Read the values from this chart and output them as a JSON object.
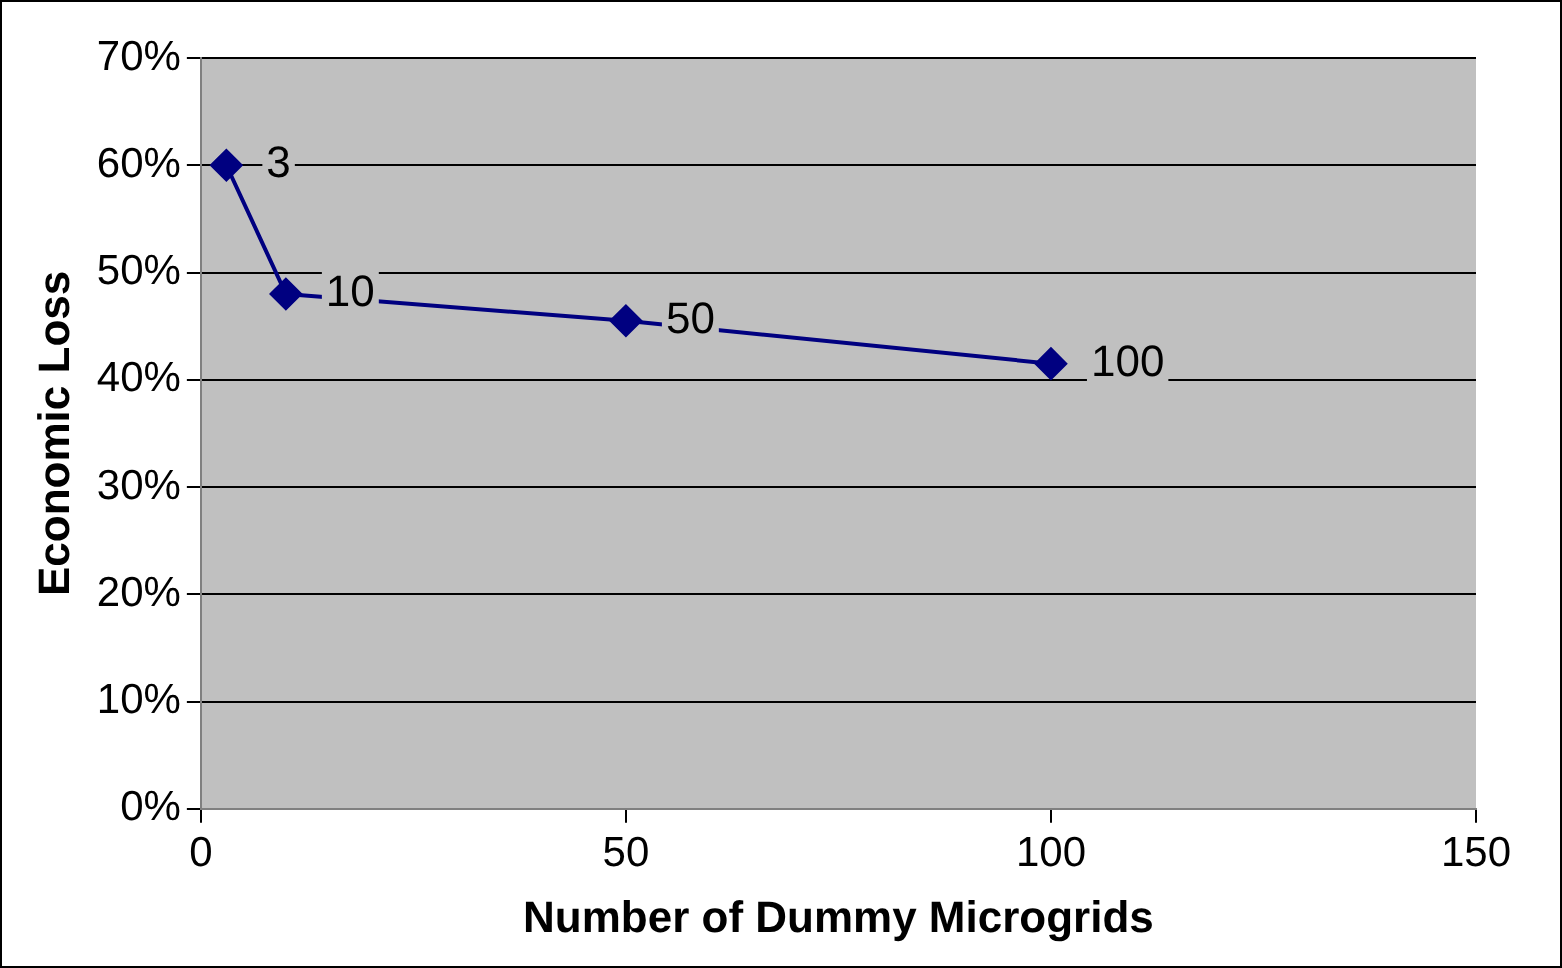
{
  "chart_data": {
    "type": "line",
    "xlabel": "Number of Dummy Microgrids",
    "ylabel": "Economic Loss",
    "x": [
      3,
      10,
      50,
      100
    ],
    "series": [
      {
        "color": "#000080",
        "values": [
          60,
          48,
          45.5,
          41.5
        ]
      }
    ],
    "annotations": [
      {
        "text": "3",
        "x": 3,
        "y": 60
      },
      {
        "text": "10",
        "x": 10,
        "y": 48
      },
      {
        "text": "50",
        "x": 50,
        "y": 45.5
      },
      {
        "text": "100",
        "x": 100,
        "y": 41.5
      }
    ],
    "xlim": [
      0,
      150
    ],
    "xticks": [
      0,
      50,
      100,
      150
    ],
    "ylim": [
      0,
      70
    ],
    "yticks": [
      {
        "value": 0,
        "label": "0%"
      },
      {
        "value": 10,
        "label": "10%"
      },
      {
        "value": 20,
        "label": "20%"
      },
      {
        "value": 30,
        "label": "30%"
      },
      {
        "value": 40,
        "label": "40%"
      },
      {
        "value": 50,
        "label": "50%"
      },
      {
        "value": 60,
        "label": "60%"
      },
      {
        "value": 70,
        "label": "70%"
      }
    ],
    "grid": "y",
    "legend": false,
    "marker": "diamond",
    "line_style": "solid"
  }
}
